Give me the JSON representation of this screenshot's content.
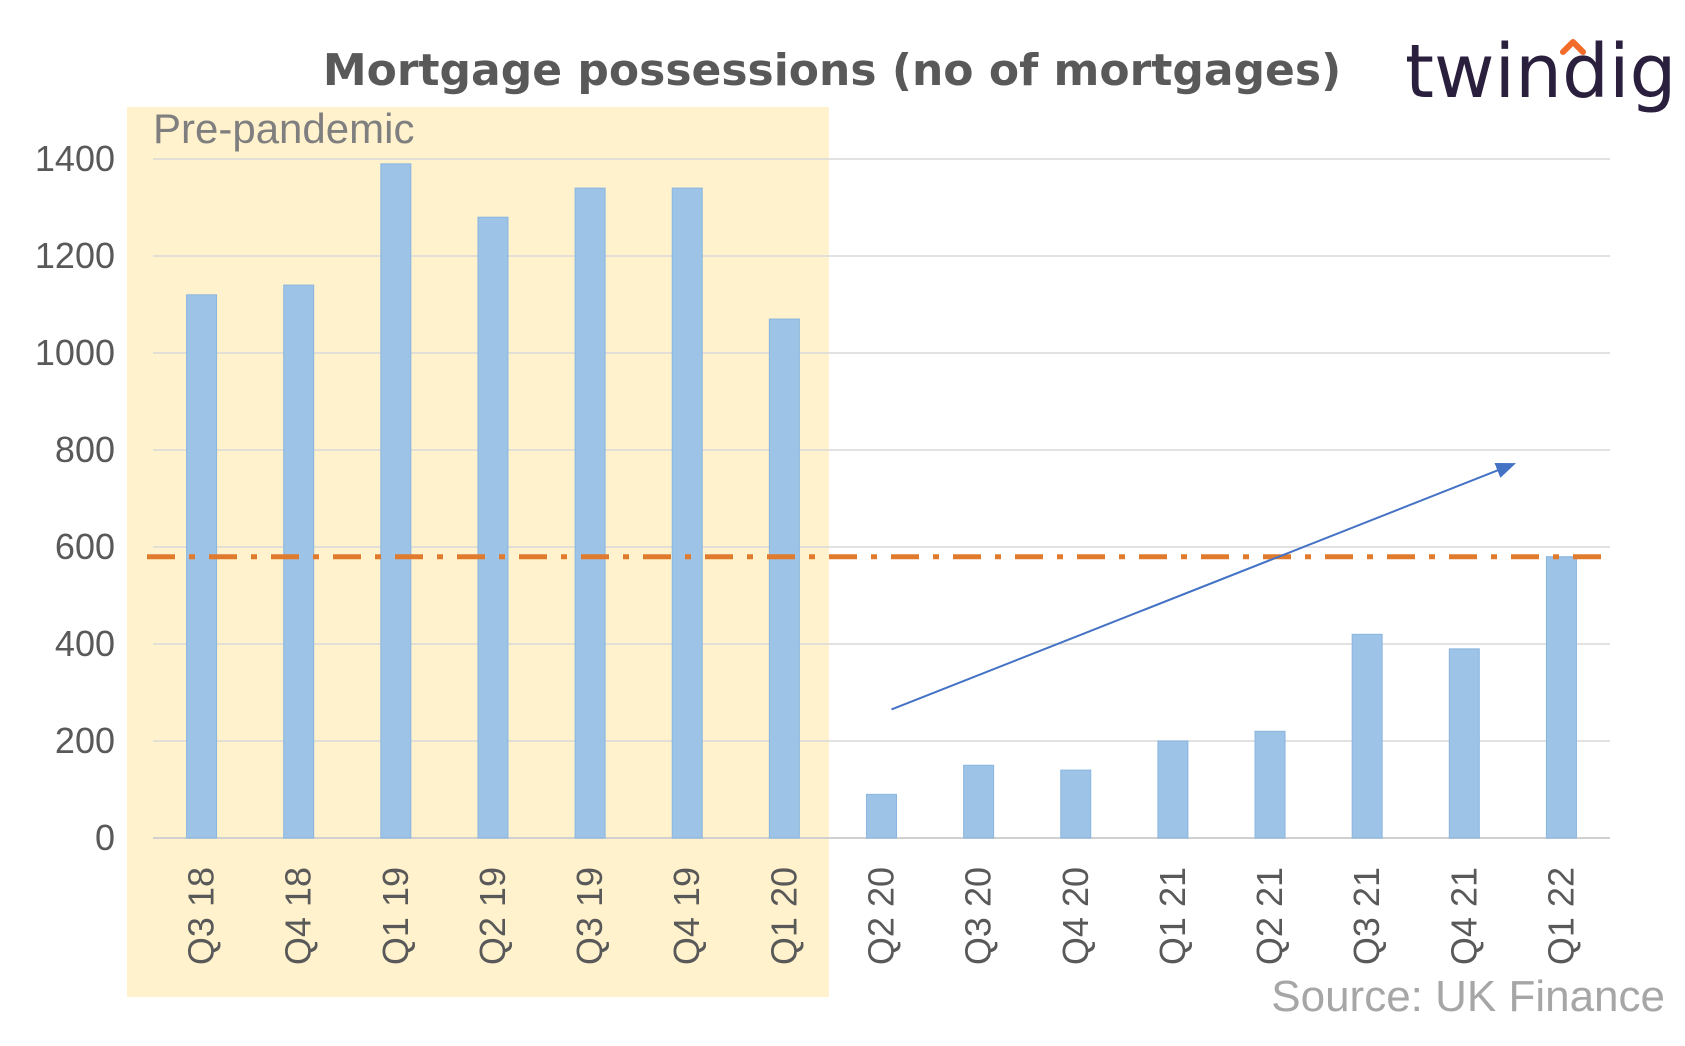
{
  "brand": {
    "name": "twindig",
    "accent_color": "#f26b2a",
    "text_color": "#2a1f3d"
  },
  "source_text": "Source: UK Finance",
  "chart_data": {
    "type": "bar",
    "title": "Mortgage possessions (no of mortgages)",
    "xlabel": "",
    "ylabel": "",
    "categories": [
      "Q3 18",
      "Q4 18",
      "Q1 19",
      "Q2 19",
      "Q3 19",
      "Q4 19",
      "Q1 20",
      "Q2 20",
      "Q3 20",
      "Q4 20",
      "Q1 21",
      "Q2 21",
      "Q3 21",
      "Q4 21",
      "Q1 22"
    ],
    "series": [
      {
        "name": "Mortgage possessions",
        "values": [
          1120,
          1140,
          1390,
          1280,
          1340,
          1340,
          1070,
          90,
          150,
          140,
          200,
          220,
          420,
          390,
          580
        ],
        "color": "#9dc3e6"
      }
    ],
    "ylim": [
      0,
      1400
    ],
    "yticks": [
      0,
      200,
      400,
      600,
      800,
      1000,
      1200,
      1400
    ],
    "grid": true,
    "reference_line": {
      "value": 580,
      "style": "dash-dot",
      "color": "#e07b2e"
    },
    "shaded_region": {
      "label": "Pre-pandemic",
      "from_category": "Q3 18",
      "to_category": "Q1 20",
      "color": "#fff2cc"
    },
    "trend_arrow": {
      "from": {
        "category": "Q2 20",
        "value": 265
      },
      "to": {
        "category": "Q4 21",
        "value": 770
      },
      "color": "#4472c4"
    }
  }
}
